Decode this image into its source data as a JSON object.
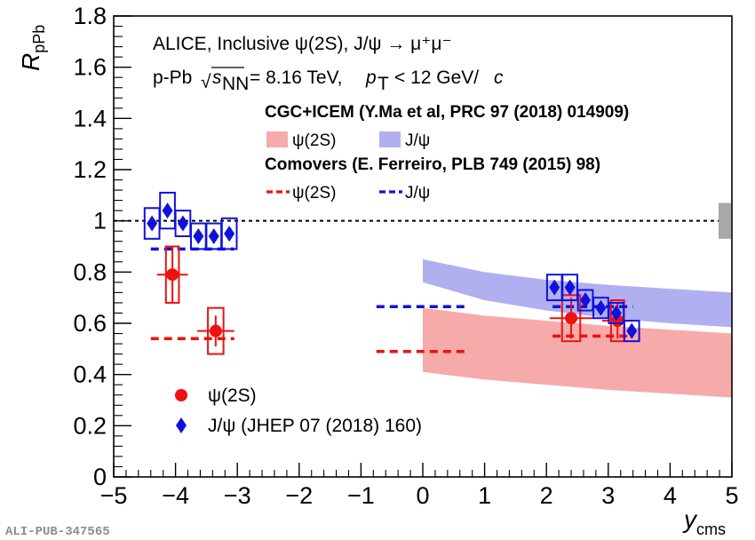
{
  "chart_data": {
    "type": "scatter",
    "xlabel": "y",
    "xlabel_sub": "cms",
    "ylabel": "R",
    "ylabel_sub": "pPb",
    "xlim": [
      -5,
      5
    ],
    "ylim": [
      0,
      1.8
    ],
    "x_ticks": [
      "−5",
      "−4",
      "−3",
      "−2",
      "−1",
      "0",
      "1",
      "2",
      "3",
      "4",
      "5"
    ],
    "y_ticks": [
      "0",
      "0.2",
      "0.4",
      "0.6",
      "0.8",
      "1",
      "1.2",
      "1.4",
      "1.6",
      "1.8"
    ],
    "reference_line_y": 1,
    "global_uncertainty": [
      0.93,
      1.07
    ],
    "annotations": {
      "line1": "ALICE, Inclusive ψ(2S), J/ψ → μ⁺μ⁻",
      "line2_prefix": "p-Pb",
      "line2_sqrt": "s",
      "line2_sub": "NN",
      "line2_energy": "= 8.16 TeV,",
      "line2_p": "p",
      "line2_p_sub": "T",
      "line2_cut": "< 12 GeV/",
      "line2_c": "c",
      "model1_title": "CGC+ICEM (Y.Ma et al, PRC 97 (2018) 014909)",
      "model1_psi": "ψ(2S)",
      "model1_jpsi": "J/ψ",
      "model2_title": "Comovers (E. Ferreiro, PLB 749 (2015) 98)",
      "model2_psi": "ψ(2S)",
      "model2_jpsi": "J/ψ"
    },
    "series": [
      {
        "name": "ψ(2S)",
        "color": "#ee1111",
        "marker": "circle",
        "points": [
          {
            "x": -4.05,
            "y": 0.79,
            "xerr": 0.25,
            "yerr": 0.11,
            "syst": 0.11
          },
          {
            "x": -3.35,
            "y": 0.57,
            "xerr": 0.3,
            "yerr": 0.06,
            "syst": 0.09
          },
          {
            "x": 2.4,
            "y": 0.62,
            "xerr": 0.35,
            "yerr": 0.08,
            "syst": 0.09
          },
          {
            "x": 3.15,
            "y": 0.61,
            "xerr": 0.25,
            "yerr": 0.07,
            "syst": 0.08
          }
        ]
      },
      {
        "name": "J/ψ (JHEP 07 (2018) 160)",
        "color": "#1111dd",
        "marker": "diamond",
        "points": [
          {
            "x": -4.38,
            "y": 0.99,
            "xerr": 0.12,
            "syst": 0.06
          },
          {
            "x": -4.13,
            "y": 1.04,
            "xerr": 0.12,
            "syst": 0.07
          },
          {
            "x": -3.88,
            "y": 0.99,
            "xerr": 0.12,
            "syst": 0.05
          },
          {
            "x": -3.63,
            "y": 0.94,
            "xerr": 0.12,
            "syst": 0.05
          },
          {
            "x": -3.38,
            "y": 0.94,
            "xerr": 0.12,
            "syst": 0.05
          },
          {
            "x": -3.13,
            "y": 0.95,
            "xerr": 0.12,
            "syst": 0.06
          },
          {
            "x": 2.13,
            "y": 0.74,
            "xerr": 0.12,
            "syst": 0.05
          },
          {
            "x": 2.38,
            "y": 0.74,
            "xerr": 0.12,
            "syst": 0.05
          },
          {
            "x": 2.63,
            "y": 0.69,
            "xerr": 0.12,
            "syst": 0.04
          },
          {
            "x": 2.88,
            "y": 0.66,
            "xerr": 0.12,
            "syst": 0.04
          },
          {
            "x": 3.13,
            "y": 0.64,
            "xerr": 0.12,
            "syst": 0.04
          },
          {
            "x": 3.38,
            "y": 0.57,
            "xerr": 0.12,
            "syst": 0.04
          }
        ]
      }
    ],
    "bands": [
      {
        "name": "CGC+ICEM ψ(2S)",
        "color": "#f7aaaa",
        "x": [
          0,
          1,
          2,
          3,
          4,
          5
        ],
        "low": [
          0.41,
          0.38,
          0.36,
          0.34,
          0.325,
          0.31
        ],
        "high": [
          0.66,
          0.63,
          0.61,
          0.59,
          0.575,
          0.56
        ]
      },
      {
        "name": "CGC+ICEM J/ψ",
        "color": "#b0b0f0",
        "x": [
          0,
          1,
          2,
          3,
          4,
          5
        ],
        "low": [
          0.76,
          0.69,
          0.65,
          0.62,
          0.6,
          0.585
        ],
        "high": [
          0.85,
          0.8,
          0.77,
          0.75,
          0.735,
          0.72
        ]
      }
    ],
    "comovers": [
      {
        "name": "Comovers ψ(2S)",
        "color": "#ee1111",
        "segments": [
          {
            "x": [
              -4.4,
              -3.05
            ],
            "y": 0.54
          },
          {
            "x": -0.75,
            "x2": 0.75,
            "y": 0.49
          },
          {
            "x": 2.1,
            "x2": 3.4,
            "y": 0.55
          }
        ]
      },
      {
        "name": "Comovers J/ψ",
        "color": "#1111dd",
        "segments": [
          {
            "x": -4.4,
            "x2": -3.05,
            "y": 0.89
          },
          {
            "x": -0.75,
            "x2": 0.75,
            "y": 0.665
          },
          {
            "x": 2.1,
            "x2": 3.4,
            "y": 0.665
          }
        ]
      }
    ],
    "legend": {
      "psi": "ψ(2S)",
      "jpsi": "J/ψ (JHEP 07 (2018) 160)"
    },
    "legend_position": "bottom-left"
  },
  "watermark": "ALI-PUB-347565"
}
